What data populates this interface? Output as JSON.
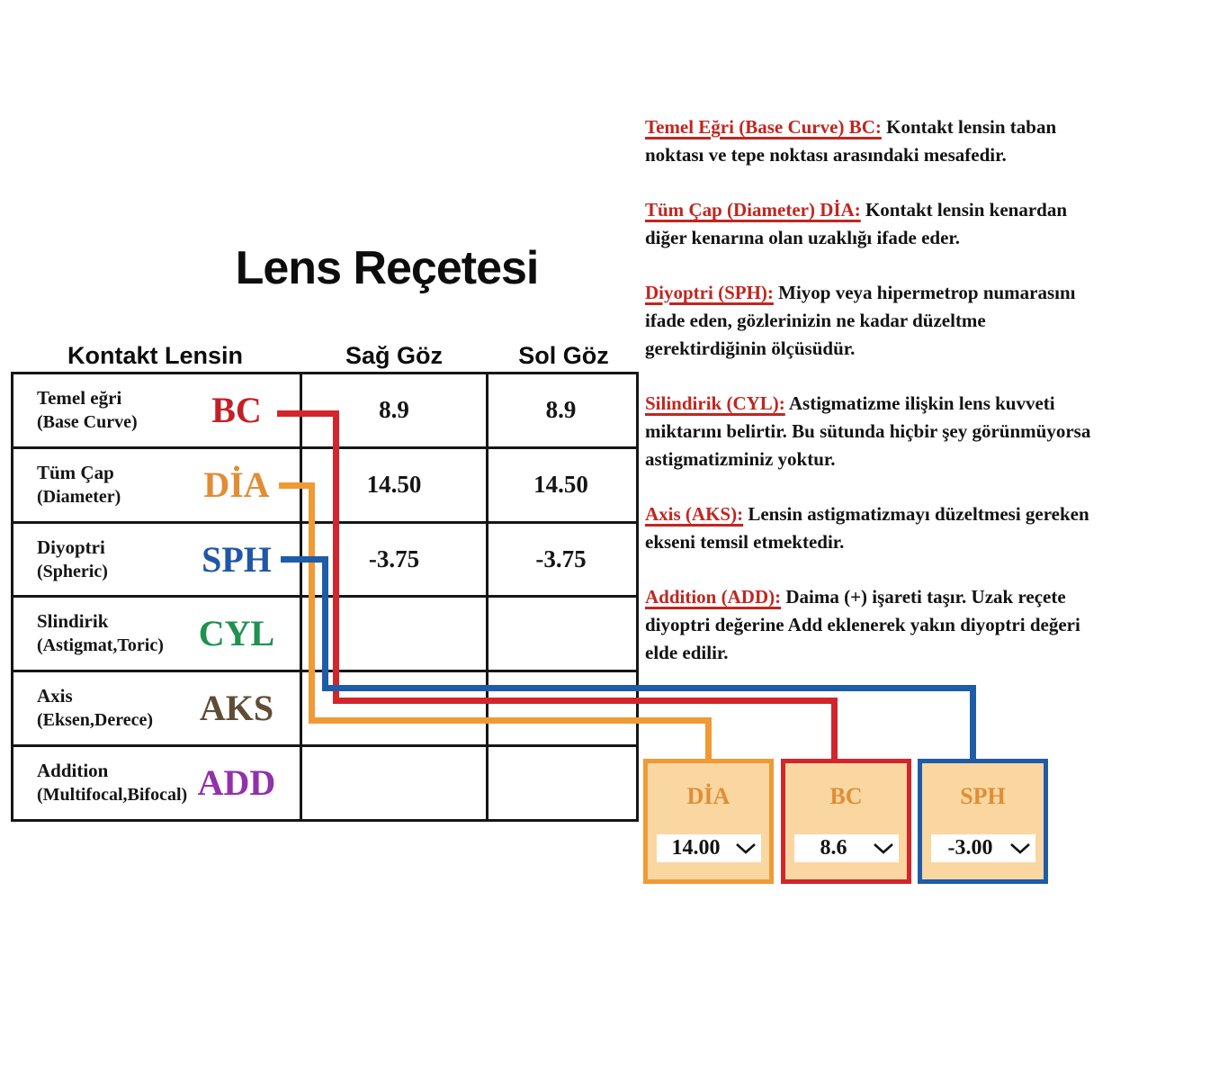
{
  "title": "Lens Reçetesi",
  "colors": {
    "red": "#C32025",
    "orange": "#E08E35",
    "blue": "#1F56A8",
    "green": "#1F9151",
    "brown": "#5F4E35",
    "purple": "#9231AC",
    "line_red": "#D2262C",
    "line_orange": "#F09A35",
    "line_blue": "#1F5CA8",
    "para_red": "#C1261F",
    "box_fill": "#FAD7A1",
    "box_label": "#E08E35"
  },
  "table": {
    "headers": [
      "Kontakt Lensin",
      "Sağ Göz",
      "Sol Göz"
    ],
    "rows": [
      {
        "label": "Temel eğri",
        "sub": "(Base Curve)",
        "code": "BC",
        "code_color": "red",
        "right_eye": "8.9",
        "left_eye": "8.9"
      },
      {
        "label": "Tüm Çap",
        "sub": "(Diameter)",
        "code": "DİA",
        "code_color": "orange",
        "right_eye": "14.50",
        "left_eye": "14.50"
      },
      {
        "label": "Diyoptri",
        "sub": "(Spheric)",
        "code": "SPH",
        "code_color": "blue",
        "right_eye": "-3.75",
        "left_eye": "-3.75"
      },
      {
        "label": "Slindirik",
        "sub": "(Astigmat,Toric)",
        "code": "CYL",
        "code_color": "green",
        "right_eye": "",
        "left_eye": ""
      },
      {
        "label": "Axis",
        "sub": "(Eksen,Derece)",
        "code": "AKS",
        "code_color": "brown",
        "right_eye": "",
        "left_eye": ""
      },
      {
        "label": "Addition",
        "sub": "(Multifocal,Bifocal)",
        "code": "ADD",
        "code_color": "purple",
        "right_eye": "",
        "left_eye": ""
      }
    ]
  },
  "paragraphs": [
    {
      "lead": "Temel Eğri (Base Curve) BC:",
      "rest": "Kontakt lensin taban",
      "lines": [
        "noktası ve tepe noktası arasındaki mesafedir."
      ]
    },
    {
      "lead": "Tüm Çap (Diameter) DİA:",
      "rest": "Kontakt lensin kenardan",
      "lines": [
        "diğer kenarına olan uzaklığı ifade eder."
      ]
    },
    {
      "lead": "Diyoptri (SPH):",
      "rest": "Miyop veya hipermetrop numarasını",
      "lines": [
        "ifade eden, gözlerinizin ne kadar düzeltme",
        "gerektirdiğinin ölçüsüdür."
      ]
    },
    {
      "lead": "Silindirik (CYL):",
      "rest": "Astigmatizme ilişkin lens kuvveti",
      "lines": [
        "miktarını belirtir. Bu sütunda hiçbir şey görünmüyorsa",
        "astigmatizminiz yoktur."
      ]
    },
    {
      "lead": "Axis (AKS):",
      "rest": "Lensin astigmatizmayı düzeltmesi gereken",
      "lines": [
        "ekseni temsil etmektedir."
      ]
    },
    {
      "lead": "Addition (ADD):",
      "rest": "Daima (+) işareti taşır. Uzak reçete",
      "lines": [
        "diyoptri değerine Add eklenerek yakın diyoptri değeri",
        "elde edilir."
      ]
    }
  ],
  "dropdown_boxes": [
    {
      "id": "dia",
      "label": "DİA",
      "value": "14.00",
      "border_color": "line_orange"
    },
    {
      "id": "bc",
      "label": "BC",
      "value": "8.6",
      "border_color": "line_red"
    },
    {
      "id": "sph",
      "label": "SPH",
      "value": "-3.00",
      "border_color": "line_blue"
    }
  ]
}
